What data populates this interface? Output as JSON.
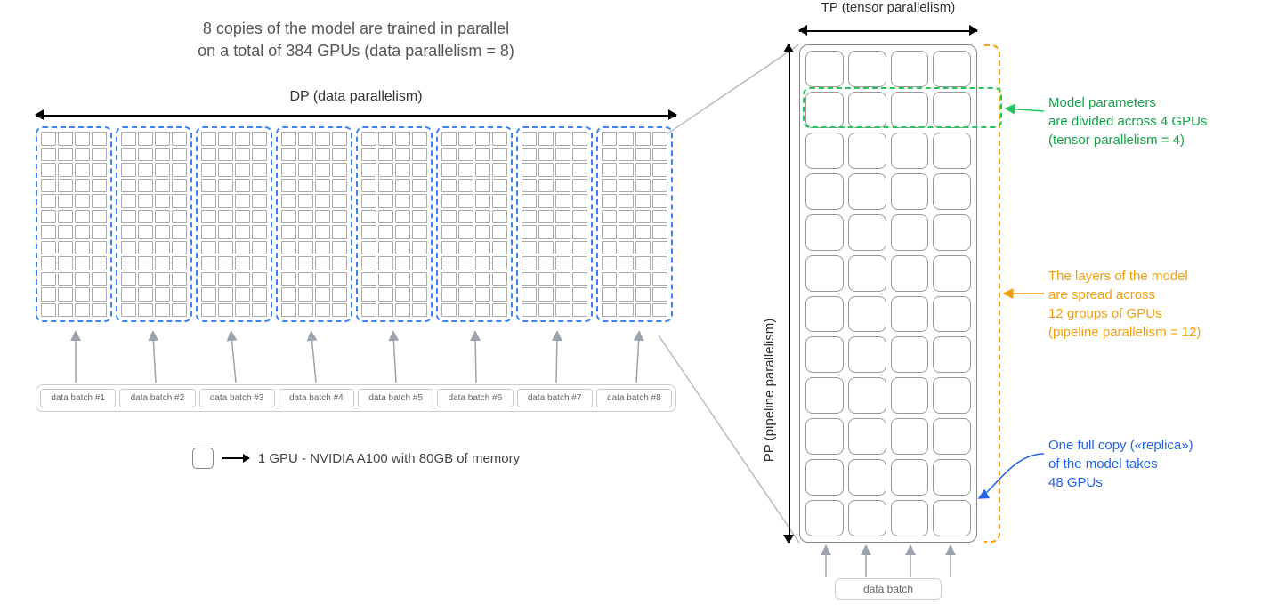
{
  "title_line1": "8 copies of the model are trained in parallel",
  "title_line2": "on a total of 384 GPUs (data parallelism = 8)",
  "dp_label": "DP (data parallelism)",
  "tp_label": "TP (tensor parallelism)",
  "pp_label": "PP (pipeline parallelism)",
  "legend_text": "1 GPU - NVIDIA A100 with 80GB of memory",
  "data_batch_right": "data batch",
  "batches": [
    "data batch #1",
    "data batch #2",
    "data batch #3",
    "data batch #4",
    "data batch #5",
    "data batch #6",
    "data batch #7",
    "data batch #8"
  ],
  "annot_green_l1": "Model parameters",
  "annot_green_l2": "are divided across 4 GPUs",
  "annot_green_l3": "(tensor parallelism = 4)",
  "annot_orange_l1": "The layers of the model",
  "annot_orange_l2": "are spread across",
  "annot_orange_l3": "12 groups of GPUs",
  "annot_orange_l4": "(pipeline parallelism = 12)",
  "annot_blue_l1": "One full copy («replica»)",
  "annot_blue_l2": "of the model takes",
  "annot_blue_l3": "48 GPUs",
  "colors": {
    "blue_dash": "#3b82f6",
    "green": "#16a34a",
    "green_dash": "#22c55e",
    "orange": "#f59e0b",
    "blue_text": "#2563eb",
    "grey_border": "#999999",
    "grey_text": "#555555",
    "arrow_grey": "#9ca3af",
    "black": "#000000",
    "background": "#ffffff"
  },
  "layout": {
    "dp_count": 8,
    "tp_count": 4,
    "pp_count": 12,
    "total_gpus": 384,
    "replica_gpus": 48,
    "replica_grid": {
      "cols": 4,
      "rows": 12
    },
    "big_grid": {
      "cols": 4,
      "rows": 12
    },
    "font_size_title": 18,
    "font_size_label": 15,
    "font_size_batch": 10,
    "font_size_annot": 15
  }
}
